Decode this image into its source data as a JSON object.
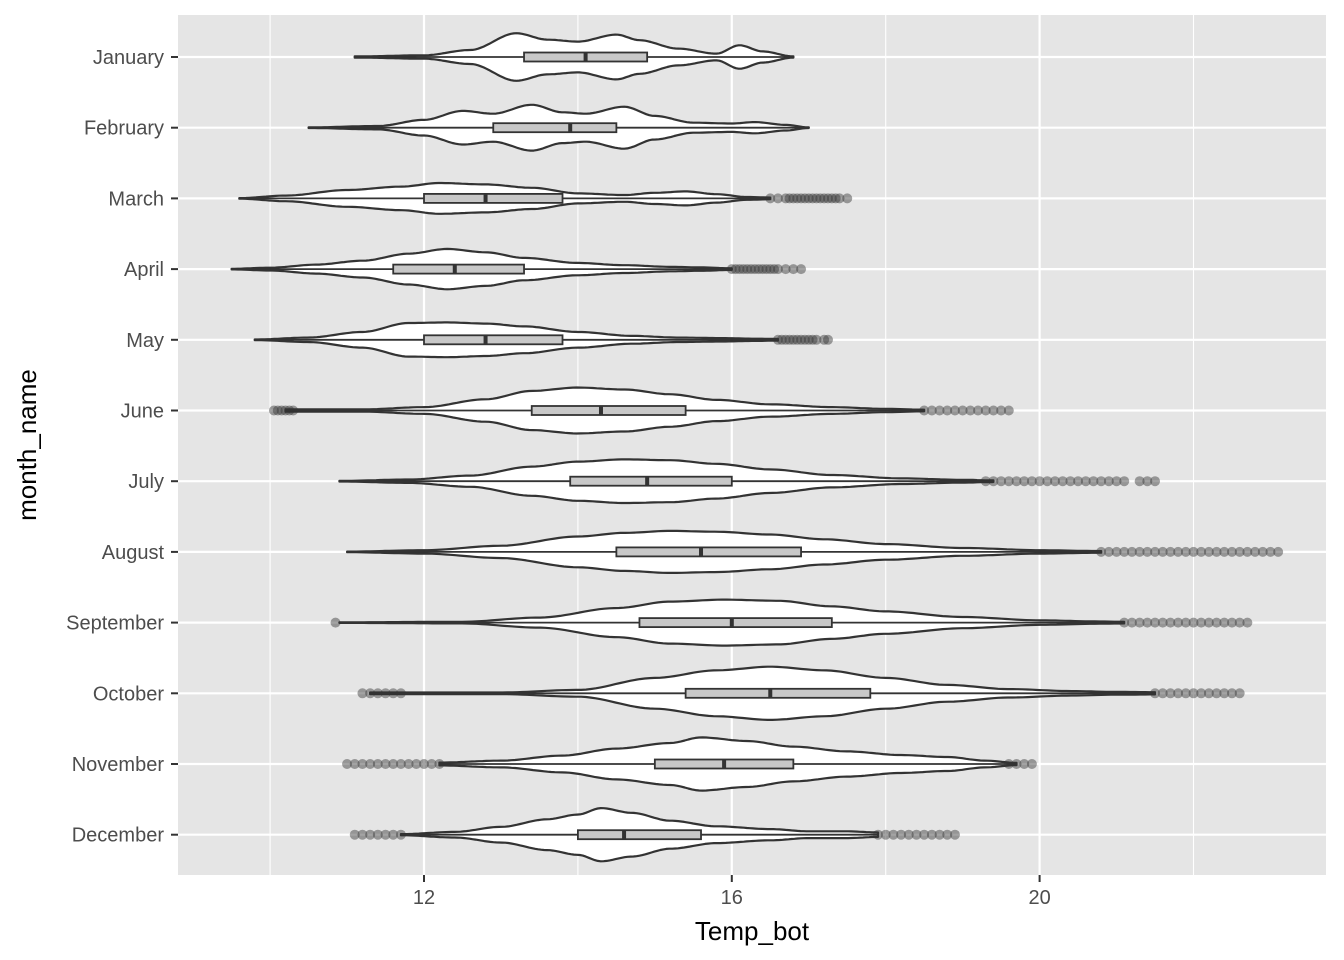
{
  "chart_data": {
    "type": "violin",
    "xlabel": "Temp_bot",
    "ylabel": "month_name",
    "xlim": [
      9.5,
      23.5
    ],
    "x_ticks": [
      12,
      16,
      20
    ],
    "grid": true,
    "legend": "none",
    "colors": {
      "panel": "#e5e5e5",
      "grid": "#ffffff",
      "violin_fill": "#ffffff",
      "line": "#333333",
      "box_fill": "#c8c8c8",
      "outlier": "#333333"
    },
    "categories": [
      "January",
      "February",
      "March",
      "April",
      "May",
      "June",
      "July",
      "August",
      "September",
      "October",
      "November",
      "December"
    ],
    "series": [
      {
        "month": "January",
        "violin_min": 11.1,
        "violin_max": 16.8,
        "box": {
          "q1": 13.3,
          "median": 14.1,
          "q3": 14.9
        },
        "density": [
          [
            11.1,
            0.02
          ],
          [
            12.0,
            0.06
          ],
          [
            12.6,
            0.25
          ],
          [
            13.2,
            0.85
          ],
          [
            13.6,
            0.62
          ],
          [
            14.0,
            0.55
          ],
          [
            14.5,
            0.8
          ],
          [
            14.8,
            0.6
          ],
          [
            15.3,
            0.3
          ],
          [
            15.8,
            0.12
          ],
          [
            16.1,
            0.42
          ],
          [
            16.4,
            0.2
          ],
          [
            16.8,
            0.02
          ]
        ],
        "outliers": []
      },
      {
        "month": "February",
        "violin_min": 10.5,
        "violin_max": 17.0,
        "box": {
          "q1": 12.9,
          "median": 13.9,
          "q3": 14.5
        },
        "density": [
          [
            10.5,
            0.01
          ],
          [
            11.4,
            0.06
          ],
          [
            12.0,
            0.28
          ],
          [
            12.5,
            0.6
          ],
          [
            12.9,
            0.5
          ],
          [
            13.4,
            0.82
          ],
          [
            13.8,
            0.55
          ],
          [
            14.1,
            0.5
          ],
          [
            14.6,
            0.75
          ],
          [
            15.0,
            0.42
          ],
          [
            15.5,
            0.18
          ],
          [
            16.0,
            0.15
          ],
          [
            16.3,
            0.2
          ],
          [
            16.7,
            0.1
          ],
          [
            17.0,
            0.01
          ]
        ],
        "outliers": []
      },
      {
        "month": "March",
        "violin_min": 9.6,
        "violin_max": 16.5,
        "box": {
          "q1": 12.0,
          "median": 12.8,
          "q3": 13.8
        },
        "density": [
          [
            9.6,
            0.01
          ],
          [
            10.2,
            0.1
          ],
          [
            11.0,
            0.3
          ],
          [
            11.7,
            0.42
          ],
          [
            12.2,
            0.55
          ],
          [
            12.8,
            0.5
          ],
          [
            13.4,
            0.38
          ],
          [
            14.0,
            0.18
          ],
          [
            14.6,
            0.12
          ],
          [
            15.0,
            0.2
          ],
          [
            15.4,
            0.25
          ],
          [
            15.8,
            0.15
          ],
          [
            16.2,
            0.05
          ],
          [
            16.5,
            0.03
          ]
        ],
        "outliers": [
          16.5,
          16.6,
          16.7,
          16.75,
          16.8,
          16.85,
          16.9,
          16.95,
          17.0,
          17.05,
          17.1,
          17.15,
          17.2,
          17.25,
          17.3,
          17.35,
          17.4,
          17.5
        ]
      },
      {
        "month": "April",
        "violin_min": 9.5,
        "violin_max": 16.0,
        "box": {
          "q1": 11.6,
          "median": 12.4,
          "q3": 13.3
        },
        "density": [
          [
            9.5,
            0.01
          ],
          [
            10.0,
            0.05
          ],
          [
            10.6,
            0.16
          ],
          [
            11.2,
            0.3
          ],
          [
            11.8,
            0.55
          ],
          [
            12.3,
            0.72
          ],
          [
            12.8,
            0.6
          ],
          [
            13.3,
            0.4
          ],
          [
            14.0,
            0.22
          ],
          [
            14.6,
            0.14
          ],
          [
            15.2,
            0.08
          ],
          [
            15.6,
            0.06
          ],
          [
            16.0,
            0.03
          ]
        ],
        "outliers": [
          16.0,
          16.05,
          16.1,
          16.15,
          16.2,
          16.25,
          16.3,
          16.35,
          16.4,
          16.45,
          16.5,
          16.55,
          16.6,
          16.7,
          16.8,
          16.9
        ]
      },
      {
        "month": "May",
        "violin_min": 9.8,
        "violin_max": 16.6,
        "box": {
          "q1": 12.0,
          "median": 12.8,
          "q3": 13.8
        },
        "density": [
          [
            9.8,
            0.01
          ],
          [
            10.5,
            0.08
          ],
          [
            11.2,
            0.28
          ],
          [
            11.8,
            0.6
          ],
          [
            12.3,
            0.62
          ],
          [
            12.8,
            0.58
          ],
          [
            13.3,
            0.48
          ],
          [
            14.0,
            0.28
          ],
          [
            14.7,
            0.14
          ],
          [
            15.3,
            0.08
          ],
          [
            15.9,
            0.06
          ],
          [
            16.3,
            0.04
          ],
          [
            16.6,
            0.03
          ]
        ],
        "outliers": [
          16.6,
          16.65,
          16.7,
          16.75,
          16.8,
          16.85,
          16.9,
          16.95,
          17.0,
          17.05,
          17.1,
          17.2,
          17.25
        ]
      },
      {
        "month": "June",
        "violin_min": 10.2,
        "violin_max": 18.5,
        "box": {
          "q1": 13.4,
          "median": 14.3,
          "q3": 15.4
        },
        "density": [
          [
            10.2,
            0.04
          ],
          [
            11.2,
            0.04
          ],
          [
            12.0,
            0.12
          ],
          [
            12.8,
            0.4
          ],
          [
            13.4,
            0.7
          ],
          [
            14.0,
            0.82
          ],
          [
            14.6,
            0.75
          ],
          [
            15.2,
            0.58
          ],
          [
            15.8,
            0.38
          ],
          [
            16.5,
            0.22
          ],
          [
            17.3,
            0.12
          ],
          [
            18.0,
            0.06
          ],
          [
            18.5,
            0.03
          ]
        ],
        "outliers": [
          10.05,
          10.1,
          10.15,
          10.2,
          10.25,
          10.3,
          18.5,
          18.6,
          18.7,
          18.8,
          18.9,
          19.0,
          19.1,
          19.2,
          19.3,
          19.4,
          19.5,
          19.6
        ]
      },
      {
        "month": "July",
        "violin_min": 10.9,
        "violin_max": 19.4,
        "box": {
          "q1": 13.9,
          "median": 14.9,
          "q3": 16.0
        },
        "density": [
          [
            10.9,
            0.01
          ],
          [
            11.8,
            0.06
          ],
          [
            12.6,
            0.2
          ],
          [
            13.4,
            0.52
          ],
          [
            14.0,
            0.7
          ],
          [
            14.6,
            0.78
          ],
          [
            15.2,
            0.75
          ],
          [
            15.8,
            0.62
          ],
          [
            16.5,
            0.42
          ],
          [
            17.3,
            0.22
          ],
          [
            18.2,
            0.1
          ],
          [
            19.0,
            0.05
          ],
          [
            19.4,
            0.03
          ]
        ],
        "outliers": [
          19.3,
          19.4,
          19.5,
          19.6,
          19.7,
          19.8,
          19.9,
          20.0,
          20.1,
          20.2,
          20.3,
          20.4,
          20.5,
          20.6,
          20.7,
          20.8,
          20.9,
          21.0,
          21.1,
          21.3,
          21.4,
          21.5
        ]
      },
      {
        "month": "August",
        "violin_min": 11.0,
        "violin_max": 20.8,
        "box": {
          "q1": 14.5,
          "median": 15.6,
          "q3": 16.9
        },
        "density": [
          [
            11.0,
            0.01
          ],
          [
            12.0,
            0.06
          ],
          [
            13.0,
            0.22
          ],
          [
            14.0,
            0.55
          ],
          [
            14.6,
            0.68
          ],
          [
            15.2,
            0.75
          ],
          [
            15.8,
            0.72
          ],
          [
            16.5,
            0.62
          ],
          [
            17.2,
            0.45
          ],
          [
            18.0,
            0.28
          ],
          [
            19.0,
            0.14
          ],
          [
            20.0,
            0.06
          ],
          [
            20.8,
            0.03
          ]
        ],
        "outliers": [
          20.8,
          20.9,
          21.0,
          21.1,
          21.2,
          21.3,
          21.4,
          21.5,
          21.6,
          21.7,
          21.8,
          21.9,
          22.0,
          22.1,
          22.2,
          22.3,
          22.4,
          22.5,
          22.6,
          22.7,
          22.8,
          22.9,
          23.0,
          23.1
        ]
      },
      {
        "month": "September",
        "violin_min": 10.9,
        "violin_max": 21.1,
        "box": {
          "q1": 14.8,
          "median": 16.0,
          "q3": 17.3
        },
        "density": [
          [
            10.9,
            0.01
          ],
          [
            12.5,
            0.03
          ],
          [
            13.5,
            0.18
          ],
          [
            14.5,
            0.52
          ],
          [
            15.2,
            0.75
          ],
          [
            15.9,
            0.82
          ],
          [
            16.6,
            0.78
          ],
          [
            17.3,
            0.58
          ],
          [
            18.0,
            0.4
          ],
          [
            19.0,
            0.2
          ],
          [
            20.0,
            0.08
          ],
          [
            20.8,
            0.04
          ],
          [
            21.1,
            0.03
          ]
        ],
        "outliers": [
          10.85,
          21.1,
          21.2,
          21.3,
          21.4,
          21.5,
          21.6,
          21.7,
          21.8,
          21.9,
          22.0,
          22.1,
          22.2,
          22.3,
          22.4,
          22.5,
          22.6,
          22.7
        ]
      },
      {
        "month": "October",
        "violin_min": 11.3,
        "violin_max": 21.5,
        "box": {
          "q1": 15.4,
          "median": 16.5,
          "q3": 17.8
        },
        "density": [
          [
            11.3,
            0.03
          ],
          [
            13.0,
            0.03
          ],
          [
            14.0,
            0.12
          ],
          [
            15.0,
            0.55
          ],
          [
            15.8,
            0.82
          ],
          [
            16.5,
            0.95
          ],
          [
            17.2,
            0.82
          ],
          [
            18.0,
            0.55
          ],
          [
            18.8,
            0.3
          ],
          [
            19.6,
            0.15
          ],
          [
            20.4,
            0.08
          ],
          [
            21.0,
            0.05
          ],
          [
            21.5,
            0.04
          ]
        ],
        "outliers": [
          11.2,
          11.3,
          11.4,
          11.5,
          11.6,
          11.7,
          21.5,
          21.6,
          21.7,
          21.8,
          21.9,
          22.0,
          22.1,
          22.2,
          22.3,
          22.4,
          22.5,
          22.6
        ]
      },
      {
        "month": "November",
        "violin_min": 12.2,
        "violin_max": 19.7,
        "box": {
          "q1": 15.0,
          "median": 15.9,
          "q3": 16.8
        },
        "density": [
          [
            12.2,
            0.05
          ],
          [
            13.0,
            0.12
          ],
          [
            13.8,
            0.3
          ],
          [
            14.5,
            0.55
          ],
          [
            15.2,
            0.75
          ],
          [
            15.6,
            0.95
          ],
          [
            16.2,
            0.82
          ],
          [
            16.8,
            0.62
          ],
          [
            17.5,
            0.45
          ],
          [
            18.2,
            0.32
          ],
          [
            18.8,
            0.25
          ],
          [
            19.3,
            0.12
          ],
          [
            19.7,
            0.04
          ]
        ],
        "outliers": [
          11.0,
          11.1,
          11.2,
          11.3,
          11.4,
          11.5,
          11.6,
          11.7,
          11.8,
          11.9,
          12.0,
          12.1,
          12.2,
          19.6,
          19.7,
          19.8,
          19.9
        ]
      },
      {
        "month": "December",
        "violin_min": 11.7,
        "violin_max": 17.9,
        "box": {
          "q1": 14.0,
          "median": 14.6,
          "q3": 15.6
        },
        "density": [
          [
            11.7,
            0.02
          ],
          [
            12.4,
            0.1
          ],
          [
            13.0,
            0.28
          ],
          [
            13.6,
            0.55
          ],
          [
            14.0,
            0.72
          ],
          [
            14.3,
            0.95
          ],
          [
            14.7,
            0.78
          ],
          [
            15.2,
            0.5
          ],
          [
            15.8,
            0.3
          ],
          [
            16.5,
            0.2
          ],
          [
            17.0,
            0.12
          ],
          [
            17.5,
            0.12
          ],
          [
            17.9,
            0.08
          ]
        ],
        "outliers": [
          11.1,
          11.2,
          11.3,
          11.4,
          11.5,
          11.6,
          11.7,
          17.9,
          18.0,
          18.1,
          18.2,
          18.3,
          18.4,
          18.5,
          18.6,
          18.7,
          18.8,
          18.9
        ]
      }
    ]
  }
}
